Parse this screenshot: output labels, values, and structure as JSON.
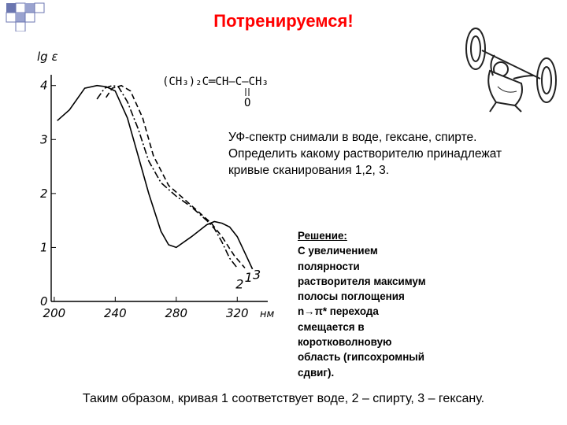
{
  "slide_title": "Потренируемся!",
  "task_lines": [
    "УФ-спектр снимали в воде, гексане, спирте.",
    "Определить какому растворителю принадлежат",
    "кривые сканирования 1,2, 3."
  ],
  "solution_lines": [
    "Решение:",
    "С увеличением",
    "полярности",
    "растворителя  максимум",
    "полосы поглощения",
    "n→π* перехода",
    "смещается в",
    "коротковолновую",
    "область (гипсохромный",
    "сдвиг)."
  ],
  "conclusion": "Таким образом, кривая 1 соответствует воде, 2 – спирту, 3 – гексану.",
  "formula": "(CH₃)₂C═CH–C–CH₃",
  "formula_substituent": "O",
  "chart_data": {
    "type": "line",
    "ylabel": "lg ε",
    "xlabel": "нм",
    "x_ticks": [
      200,
      240,
      280,
      320
    ],
    "y_ticks": [
      0,
      1,
      2,
      3,
      4
    ],
    "xlim": [
      198,
      340
    ],
    "ylim": [
      0,
      4.2
    ],
    "grid": false,
    "series": [
      {
        "name": "1",
        "style": "solid",
        "x": [
          202,
          210,
          220,
          228,
          234,
          240,
          248,
          255,
          262,
          270,
          275,
          280,
          290,
          300,
          305,
          310,
          315,
          320,
          325,
          330
        ],
        "y": [
          3.35,
          3.55,
          3.95,
          4.0,
          3.98,
          3.9,
          3.4,
          2.7,
          2.0,
          1.3,
          1.05,
          1.0,
          1.2,
          1.42,
          1.48,
          1.45,
          1.38,
          1.2,
          0.9,
          0.6
        ]
      },
      {
        "name": "2",
        "style": "dashdot",
        "x": [
          228,
          233,
          238,
          242,
          248,
          255,
          262,
          270,
          280,
          290,
          300,
          305,
          310,
          315,
          320
        ],
        "y": [
          3.75,
          3.95,
          4.0,
          3.98,
          3.7,
          3.2,
          2.6,
          2.2,
          1.95,
          1.75,
          1.5,
          1.35,
          1.1,
          0.8,
          0.62
        ]
      },
      {
        "name": "3",
        "style": "dashed",
        "x": [
          234,
          238,
          244,
          250,
          258,
          265,
          275,
          285,
          295,
          303,
          310,
          318,
          325
        ],
        "y": [
          3.78,
          3.95,
          4.0,
          3.9,
          3.4,
          2.7,
          2.15,
          1.9,
          1.65,
          1.45,
          1.2,
          0.85,
          0.62
        ]
      }
    ]
  }
}
